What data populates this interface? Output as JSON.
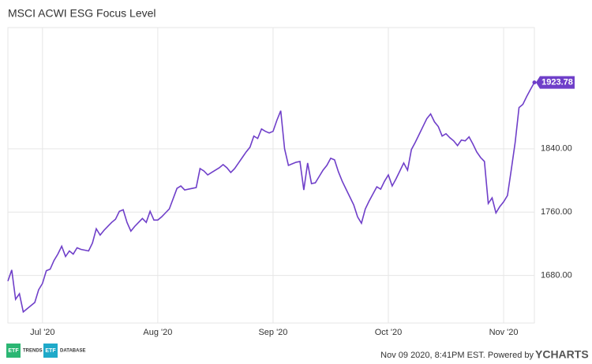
{
  "chart_data": {
    "type": "line",
    "title": "MSCI ACWI ESG Focus Level",
    "categories": [
      null,
      null,
      null,
      null,
      null,
      null,
      null,
      null,
      null,
      "Jul '20",
      null,
      null,
      null,
      null,
      null,
      null,
      null,
      null,
      null,
      null,
      null,
      null,
      null,
      null,
      null,
      null,
      null,
      null,
      null,
      null,
      null,
      null,
      null,
      null,
      null,
      null,
      null,
      null,
      null,
      "Aug '20",
      null,
      null,
      null,
      null,
      null,
      null,
      null,
      null,
      null,
      null,
      null,
      null,
      null,
      null,
      null,
      null,
      null,
      null,
      null,
      null,
      null,
      null,
      null,
      null,
      null,
      null,
      null,
      null,
      null,
      "Sep '20",
      null,
      null,
      null,
      null,
      null,
      null,
      null,
      null,
      null,
      null,
      null,
      null,
      null,
      null,
      null,
      null,
      null,
      null,
      null,
      null,
      null,
      null,
      null,
      null,
      null,
      null,
      null,
      null,
      null,
      "Oct '20",
      null,
      null,
      null,
      null,
      null,
      null,
      null,
      null,
      null,
      null,
      null,
      null,
      null,
      null,
      null,
      null,
      null,
      null,
      null,
      null,
      null,
      null,
      null,
      null,
      null,
      null,
      null,
      null,
      null,
      "Nov '20",
      null,
      null,
      null,
      null,
      null,
      null,
      null,
      null
    ],
    "series": [
      {
        "name": "MSCI ACWI ESG Focus Level",
        "color": "#6f3fc9",
        "values": [
          1673,
          1687,
          1650,
          1657,
          1634,
          1638,
          1642,
          1646,
          1662,
          1670,
          1686,
          1688,
          1699,
          1707,
          1717,
          1704,
          1711,
          1707,
          1715,
          1713,
          1712,
          1711,
          1721,
          1739,
          1731,
          1737,
          1742,
          1747,
          1751,
          1761,
          1763,
          1747,
          1736,
          1742,
          1747,
          1752,
          1747,
          1761,
          1750,
          1750,
          1754,
          1759,
          1764,
          1777,
          1790,
          1793,
          1788,
          1789,
          1790,
          1791,
          1815,
          1812,
          1807,
          1810,
          1813,
          1816,
          1820,
          1816,
          1810,
          1815,
          1822,
          1829,
          1836,
          1842,
          1856,
          1853,
          1865,
          1862,
          1860,
          1862,
          1876,
          1888,
          1840,
          1819,
          1821,
          1823,
          1824,
          1788,
          1822,
          1796,
          1797,
          1805,
          1813,
          1819,
          1828,
          1826,
          1811,
          1799,
          1789,
          1779,
          1769,
          1754,
          1746,
          1764,
          1774,
          1783,
          1792,
          1789,
          1799,
          1807,
          1793,
          1802,
          1812,
          1822,
          1813,
          1839,
          1848,
          1858,
          1868,
          1878,
          1884,
          1874,
          1868,
          1856,
          1859,
          1854,
          1850,
          1844,
          1851,
          1850,
          1855,
          1846,
          1836,
          1829,
          1824,
          1771,
          1778,
          1759,
          1767,
          1773,
          1781,
          1814,
          1848,
          1892,
          1896,
          1906,
          1915,
          1923.78
        ]
      }
    ],
    "ylim": [
      1620,
      1993
    ],
    "yticks": [
      {
        "value": 1680,
        "label": "1680.00"
      },
      {
        "value": 1760,
        "label": "1760.00"
      },
      {
        "value": 1840,
        "label": "1840.00"
      }
    ],
    "grid": true,
    "footer": "Nov 09 2020, 8:41PM EST. Powered by",
    "brand": "YCHARTS",
    "logos": [
      "ETF",
      "TRENDS",
      "ETF",
      "DATABASE"
    ]
  }
}
